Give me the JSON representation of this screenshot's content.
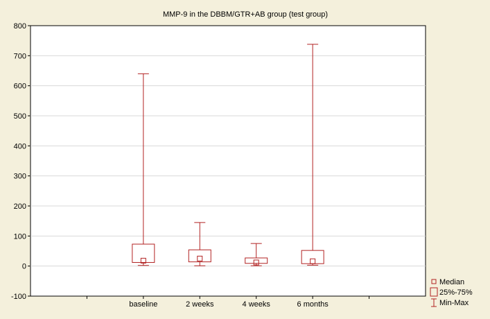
{
  "chart_data": {
    "type": "box",
    "title": "MMP-9 in the DBBM/GTR+AB group (test group)",
    "xlabel": "",
    "ylabel": "",
    "ylim": [
      -100,
      800
    ],
    "yticks": [
      -100,
      0,
      100,
      200,
      300,
      400,
      500,
      600,
      700,
      800
    ],
    "grid": true,
    "categories": [
      "baseline",
      "2 weeks",
      "4 weeks",
      "6 months"
    ],
    "boxes": [
      {
        "category": "baseline",
        "min": 2,
        "q1": 12,
        "median": 18,
        "q3": 73,
        "max": 640
      },
      {
        "category": "2 weeks",
        "min": 1,
        "q1": 14,
        "median": 25,
        "q3": 54,
        "max": 145
      },
      {
        "category": "4 weeks",
        "min": 1,
        "q1": 9,
        "median": 12,
        "q3": 27,
        "max": 75
      },
      {
        "category": "6 months",
        "min": 3,
        "q1": 8,
        "median": 16,
        "q3": 52,
        "max": 738
      }
    ],
    "legend": {
      "position": "bottom-right",
      "entries": [
        "Median",
        "25%-75%",
        "Min-Max"
      ]
    },
    "colors": {
      "series": "#b22222",
      "background": "#f4f0dc",
      "plot": "#ffffff",
      "grid": "#d8d8d8"
    }
  }
}
